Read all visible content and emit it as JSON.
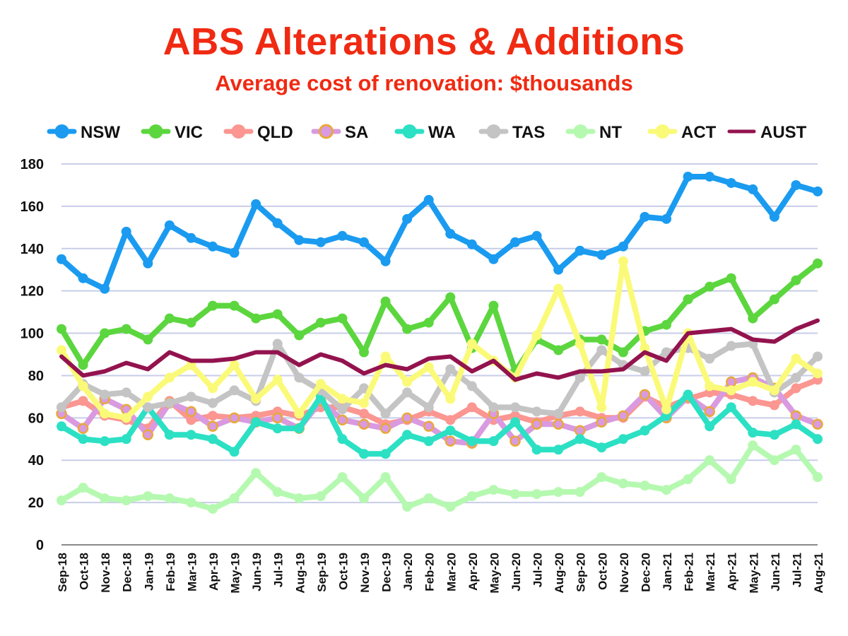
{
  "chart_data": {
    "type": "line",
    "title": "ABS Alterations & Additions",
    "subtitle": "Average cost of renovation: $thousands",
    "xlabel": "",
    "ylabel": "",
    "ylim": [
      0,
      180
    ],
    "yticks": [
      0,
      20,
      40,
      60,
      80,
      100,
      120,
      140,
      160,
      180
    ],
    "grid": true,
    "legend_position": "top",
    "categories": [
      "Sep-18",
      "Oct-18",
      "Nov-18",
      "Dec-18",
      "Jan-19",
      "Feb-19",
      "Mar-19",
      "Apr-19",
      "May-19",
      "Jun-19",
      "Jul-19",
      "Aug-19",
      "Sep-19",
      "Oct-19",
      "Nov-19",
      "Dec-19",
      "Jan-20",
      "Feb-20",
      "Mar-20",
      "Apr-20",
      "May-20",
      "Jun-20",
      "Jul-20",
      "Aug-20",
      "Sep-20",
      "Oct-20",
      "Nov-20",
      "Dec-20",
      "Jan-21",
      "Feb-21",
      "Mar-21",
      "Apr-21",
      "May-21",
      "Jun-21",
      "Jul-21",
      "Aug-21"
    ],
    "series": [
      {
        "name": "NSW",
        "color": "#1a9bf0",
        "marker": "dot",
        "values": [
          135,
          126,
          121,
          148,
          133,
          151,
          145,
          141,
          138,
          161,
          152,
          144,
          143,
          146,
          143,
          134,
          154,
          163,
          147,
          142,
          135,
          143,
          146,
          130,
          139,
          137,
          141,
          155,
          154,
          174,
          174,
          171,
          168,
          155,
          170,
          167
        ]
      },
      {
        "name": "VIC",
        "color": "#5cd63e",
        "marker": "dot",
        "values": [
          102,
          85,
          100,
          102,
          97,
          107,
          105,
          113,
          113,
          107,
          109,
          99,
          105,
          107,
          91,
          115,
          102,
          105,
          117,
          93,
          113,
          82,
          97,
          92,
          97,
          97,
          91,
          101,
          104,
          116,
          122,
          126,
          107,
          116,
          125,
          133
        ]
      },
      {
        "name": "QLD",
        "color": "#fb9691",
        "marker": "dot",
        "values": [
          65,
          68,
          61,
          59,
          55,
          68,
          59,
          61,
          60,
          61,
          63,
          61,
          65,
          65,
          62,
          57,
          59,
          63,
          59,
          65,
          59,
          61,
          58,
          61,
          63,
          60,
          60,
          70,
          65,
          69,
          72,
          71,
          68,
          66,
          74,
          78
        ]
      },
      {
        "name": "SA",
        "color": "#d99ae0",
        "marker": "ring",
        "values": [
          62,
          55,
          69,
          64,
          52,
          67,
          63,
          56,
          60,
          58,
          60,
          55,
          68,
          59,
          57,
          55,
          60,
          56,
          49,
          48,
          62,
          49,
          57,
          57,
          54,
          58,
          61,
          71,
          60,
          70,
          63,
          77,
          79,
          74,
          61,
          57
        ]
      },
      {
        "name": "WA",
        "color": "#2ce0c4",
        "marker": "dot",
        "values": [
          56,
          50,
          49,
          50,
          65,
          52,
          52,
          50,
          44,
          58,
          55,
          55,
          70,
          50,
          43,
          43,
          52,
          49,
          54,
          49,
          49,
          58,
          45,
          45,
          50,
          46,
          50,
          54,
          61,
          71,
          56,
          65,
          53,
          52,
          57,
          50
        ]
      },
      {
        "name": "TAS",
        "color": "#c4c4c4",
        "marker": "dot",
        "values": [
          65,
          76,
          71,
          72,
          65,
          67,
          70,
          67,
          73,
          68,
          95,
          79,
          73,
          64,
          74,
          62,
          72,
          65,
          83,
          75,
          65,
          65,
          63,
          62,
          79,
          92,
          85,
          82,
          91,
          93,
          88,
          94,
          95,
          72,
          79,
          89
        ]
      },
      {
        "name": "NT",
        "color": "#b5f9b0",
        "marker": "dot",
        "values": [
          21,
          27,
          22,
          21,
          23,
          22,
          20,
          17,
          22,
          34,
          25,
          22,
          23,
          32,
          22,
          32,
          18,
          22,
          18,
          23,
          26,
          24,
          24,
          25,
          25,
          32,
          29,
          28,
          26,
          31,
          40,
          31,
          47,
          40,
          45,
          32
        ]
      },
      {
        "name": "ACT",
        "color": "#fafa78",
        "marker": "dot",
        "values": [
          92,
          75,
          62,
          60,
          70,
          79,
          85,
          74,
          85,
          69,
          78,
          62,
          76,
          69,
          67,
          89,
          77,
          84,
          69,
          95,
          87,
          79,
          99,
          121,
          95,
          65,
          134,
          93,
          64,
          100,
          75,
          73,
          77,
          73,
          88,
          81
        ]
      },
      {
        "name": "AUST",
        "color": "#93134e",
        "marker": "none",
        "values": [
          89,
          80,
          82,
          86,
          83,
          91,
          87,
          87,
          88,
          91,
          91,
          85,
          90,
          87,
          81,
          85,
          83,
          88,
          89,
          82,
          87,
          78,
          81,
          79,
          82,
          82,
          83,
          91,
          87,
          100,
          101,
          102,
          97,
          96,
          102,
          106
        ]
      }
    ]
  }
}
